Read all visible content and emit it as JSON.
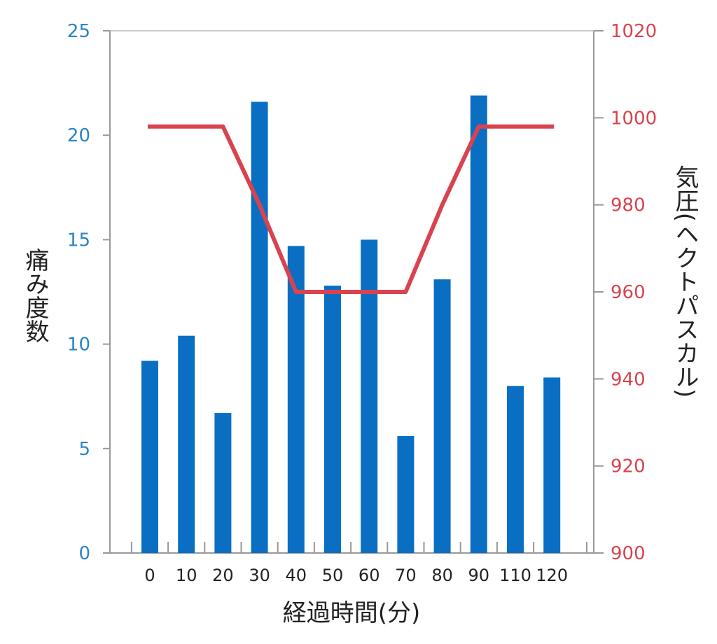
{
  "chart_data": {
    "type": "bar",
    "title": "",
    "xlabel": "経過時間(分)",
    "ylabel": "痛み度数",
    "y2label": "気圧(ヘクトパスカル)",
    "categories": [
      "0",
      "10",
      "20",
      "30",
      "40",
      "50",
      "60",
      "70",
      "80",
      "90",
      "110",
      "120"
    ],
    "ylim": [
      0,
      25
    ],
    "y2lim": [
      900,
      1020
    ],
    "yticks": [
      "0",
      "5",
      "10",
      "15",
      "20",
      "25"
    ],
    "y2ticks": [
      "900",
      "920",
      "940",
      "960",
      "980",
      "1000",
      "1020"
    ],
    "grid": false,
    "legend": "none",
    "series": [
      {
        "type": "bar",
        "axis": "left",
        "values": [
          9.2,
          10.4,
          6.7,
          21.6,
          14.7,
          12.8,
          15.0,
          5.6,
          13.1,
          21.9,
          8.0,
          8.4
        ],
        "color": "#0a6fc2"
      },
      {
        "type": "line",
        "axis": "right",
        "values": [
          998,
          998,
          998,
          980,
          960,
          960,
          960,
          960,
          980,
          998,
          998,
          998
        ],
        "color": "#d9434f"
      }
    ],
    "colors": {
      "left_axis_text": "#2a84c6",
      "right_axis_text": "#d9434f",
      "axis_line": "#999999",
      "text": "#222222"
    }
  }
}
